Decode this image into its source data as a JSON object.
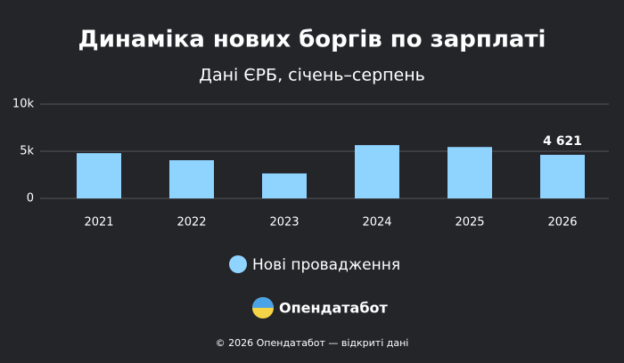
{
  "chart_data": {
    "type": "bar",
    "title": "Динаміка нових боргів по зарплаті",
    "subtitle": "Дані ЄРБ, січень–серпень",
    "categories": [
      "2021",
      "2022",
      "2023",
      "2024",
      "2025",
      "2026"
    ],
    "series": [
      {
        "name": "Нові провадження",
        "color": "#8fd3ff",
        "values": [
          4800,
          4050,
          2650,
          5650,
          5450,
          4621
        ],
        "value_labels": [
          null,
          null,
          null,
          null,
          null,
          "4 621"
        ]
      }
    ],
    "ylim": [
      0,
      10000
    ],
    "yticks": [
      0,
      {
        "value": 5000,
        "label": "5k"
      },
      {
        "value": 10000,
        "label": "10k"
      }
    ],
    "grid": true
  },
  "brand": "Опендатабот",
  "footer": "© 2026 Опендатабот — відкриті дані"
}
